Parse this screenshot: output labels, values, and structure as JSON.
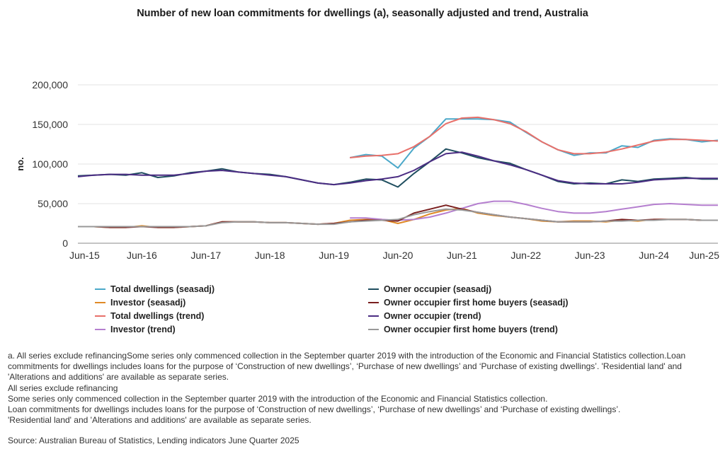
{
  "chart_data": {
    "type": "line",
    "title": "Number of new loan commitments for dwellings (a), seasonally adjusted and trend, Australia",
    "ylabel": "no.",
    "xlabel": "",
    "ylim": [
      0,
      200000
    ],
    "yticks": [
      "200,000",
      "150,000",
      "100,000",
      "50,000",
      "0"
    ],
    "ytick_values": [
      200000,
      150000,
      100000,
      50000,
      0
    ],
    "x": [
      "Jun-15",
      "Sep-15",
      "Dec-15",
      "Mar-16",
      "Jun-16",
      "Sep-16",
      "Dec-16",
      "Mar-17",
      "Jun-17",
      "Sep-17",
      "Dec-17",
      "Mar-18",
      "Jun-18",
      "Sep-18",
      "Dec-18",
      "Mar-19",
      "Jun-19",
      "Sep-19",
      "Dec-19",
      "Mar-20",
      "Jun-20",
      "Sep-20",
      "Dec-20",
      "Mar-21",
      "Jun-21",
      "Sep-21",
      "Dec-21",
      "Mar-22",
      "Jun-22",
      "Sep-22",
      "Dec-22",
      "Mar-23",
      "Jun-23",
      "Sep-23",
      "Dec-23",
      "Mar-24",
      "Jun-24",
      "Sep-24",
      "Dec-24",
      "Mar-25",
      "Jun-25"
    ],
    "xticks": [
      "Jun-15",
      "Jun-16",
      "Jun-17",
      "Jun-18",
      "Jun-19",
      "Jun-20",
      "Jun-21",
      "Jun-22",
      "Jun-23",
      "Jun-24",
      "Jun-25"
    ],
    "grid": true,
    "legend_position": "bottom",
    "series": [
      {
        "name": "Total dwellings (seasadj)",
        "color": "#4ba8c9",
        "values": [
          null,
          null,
          null,
          null,
          null,
          null,
          null,
          null,
          null,
          null,
          null,
          null,
          null,
          null,
          null,
          null,
          null,
          108000,
          112000,
          110000,
          95000,
          120000,
          135000,
          157000,
          157000,
          157000,
          156000,
          153000,
          140000,
          128000,
          118000,
          111000,
          114000,
          114000,
          123000,
          121000,
          130000,
          132000,
          131000,
          128000,
          130000
        ]
      },
      {
        "name": "Investor (seasadj)",
        "color": "#e08a26",
        "values": [
          21000,
          21000,
          20000,
          20000,
          22000,
          20000,
          20000,
          21000,
          22000,
          27000,
          27000,
          27000,
          26000,
          26000,
          25000,
          24000,
          25000,
          29000,
          30000,
          30000,
          25000,
          30000,
          37000,
          42000,
          44000,
          38000,
          35000,
          33000,
          31000,
          28000,
          27000,
          28000,
          28000,
          27000,
          29000,
          28000,
          30000,
          30000,
          30000,
          29000,
          29000
        ]
      },
      {
        "name": "Total dwellings (trend)",
        "color": "#e8706a",
        "values": [
          null,
          null,
          null,
          null,
          null,
          null,
          null,
          null,
          null,
          null,
          null,
          null,
          null,
          null,
          null,
          null,
          null,
          108000,
          110000,
          111000,
          113000,
          122000,
          135000,
          151000,
          158000,
          159000,
          156000,
          151000,
          141000,
          128000,
          118000,
          113000,
          113000,
          115000,
          119000,
          124000,
          129000,
          131000,
          131000,
          130000,
          129000
        ]
      },
      {
        "name": "Investor (trend)",
        "color": "#b57fcf",
        "values": [
          null,
          null,
          null,
          null,
          null,
          null,
          null,
          null,
          null,
          null,
          null,
          null,
          null,
          null,
          null,
          null,
          null,
          32000,
          32000,
          30000,
          29000,
          30000,
          33000,
          38000,
          44000,
          50000,
          53000,
          53000,
          49000,
          44000,
          40000,
          38000,
          38000,
          40000,
          43000,
          46000,
          49000,
          50000,
          49000,
          48000,
          48000
        ]
      },
      {
        "name": "Owner occupier (seasadj)",
        "color": "#1f4e5f",
        "values": [
          85000,
          86000,
          87000,
          86000,
          89000,
          83000,
          85000,
          89000,
          91000,
          94000,
          90000,
          88000,
          87000,
          84000,
          80000,
          76000,
          74000,
          77000,
          81000,
          80000,
          71000,
          88000,
          103000,
          119000,
          114000,
          108000,
          104000,
          101000,
          93000,
          86000,
          78000,
          75000,
          76000,
          75000,
          80000,
          78000,
          81000,
          82000,
          83000,
          81000,
          81000
        ]
      },
      {
        "name": "Owner occupier first home buyers (seasadj)",
        "color": "#7a1f1f",
        "values": [
          21000,
          21000,
          20000,
          20000,
          21000,
          20000,
          20000,
          21000,
          22000,
          27000,
          27000,
          27000,
          26000,
          26000,
          25000,
          24000,
          25000,
          27000,
          29000,
          29000,
          28000,
          38000,
          43000,
          48000,
          43000,
          39000,
          36000,
          33000,
          31000,
          29000,
          27000,
          27000,
          27000,
          28000,
          30000,
          29000,
          30000,
          30000,
          30000,
          29000,
          29000
        ]
      },
      {
        "name": "Owner occupier (trend)",
        "color": "#4b2d83",
        "values": [
          84000,
          86000,
          87000,
          87000,
          86000,
          86000,
          86000,
          88000,
          91000,
          92000,
          90000,
          88000,
          86000,
          84000,
          80000,
          76000,
          74000,
          76000,
          79000,
          81000,
          84000,
          92000,
          103000,
          113000,
          115000,
          110000,
          104000,
          99000,
          93000,
          86000,
          79000,
          76000,
          75000,
          75000,
          75000,
          77000,
          80000,
          81000,
          82000,
          82000,
          82000
        ]
      },
      {
        "name": "Owner occupier first home buyers (trend)",
        "color": "#999999",
        "values": [
          21000,
          21000,
          21000,
          21000,
          21000,
          21000,
          21000,
          21000,
          22000,
          26000,
          27000,
          27000,
          26000,
          26000,
          25000,
          24000,
          24000,
          27000,
          28000,
          29000,
          30000,
          36000,
          40000,
          43000,
          42000,
          39000,
          36000,
          33000,
          31000,
          29000,
          27000,
          27000,
          27000,
          28000,
          28000,
          29000,
          29000,
          30000,
          30000,
          29000,
          29000
        ]
      }
    ]
  },
  "notes": {
    "line1": "a. All series exclude refinancingSome series only commenced collection in the September quarter 2019 with the introduction of the Economic and Financial Statistics collection.Loan commitments for dwellings includes loans for the purpose of ‘Construction of new dwellings’, ‘Purchase of new dwellings’ and ‘Purchase of existing dwellings’. 'Residential land' and 'Alterations and additions' are available as separate series.",
    "line2": "All series exclude refinancing",
    "line3": "Some series only commenced collection in the September quarter 2019 with the introduction of the Economic and Financial Statistics collection.",
    "line4": "Loan commitments for dwellings includes loans for the purpose of ‘Construction of new dwellings’, ‘Purchase of new dwellings’ and ‘Purchase of existing dwellings’.",
    "line5": "'Residential land' and 'Alterations and additions' are available as separate series.",
    "source": "Source: Australian Bureau of Statistics, Lending indicators June Quarter 2025"
  }
}
